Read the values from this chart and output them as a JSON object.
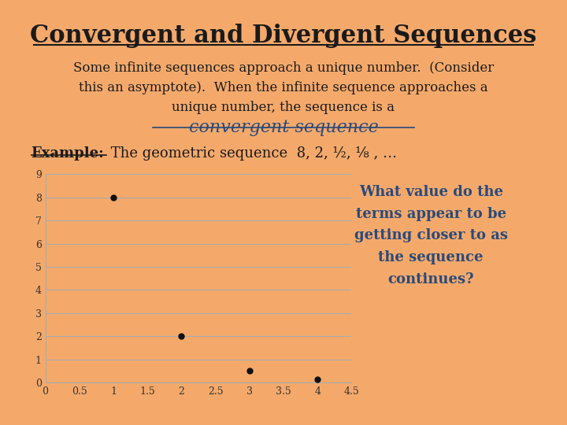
{
  "title": "Convergent and Divergent Sequences",
  "bg_color": "#F4A96B",
  "body_text1": "Some infinite sequences approach a unique number.  (Consider\nthis an asymptote).  When the infinite sequence approaches a\nunique number, the sequence is a",
  "convergent_text": "convergent sequence",
  "example_label": "Example:",
  "example_text": " The geometric sequence  8, 2, ½, ⅛ , …",
  "scatter_x": [
    1,
    2,
    3,
    4
  ],
  "scatter_y": [
    8,
    2,
    0.5,
    0.125
  ],
  "scatter_color": "#111111",
  "xlim": [
    0,
    4.5
  ],
  "ylim": [
    0,
    9
  ],
  "xticks": [
    0,
    0.5,
    1,
    1.5,
    2,
    2.5,
    3,
    3.5,
    4,
    4.5
  ],
  "yticks": [
    0,
    1,
    2,
    3,
    4,
    5,
    6,
    7,
    8,
    9
  ],
  "grid_color": "#aaaaaa",
  "side_text": "What value do the\nterms appear to be\ngetting closer to as\nthe sequence\ncontinues?",
  "side_text_color": "#2a4a7a",
  "title_color": "#1a1a1a",
  "body_color": "#1a1a1a",
  "convergent_color": "#2a4a7a",
  "example_color": "#1a1a1a"
}
